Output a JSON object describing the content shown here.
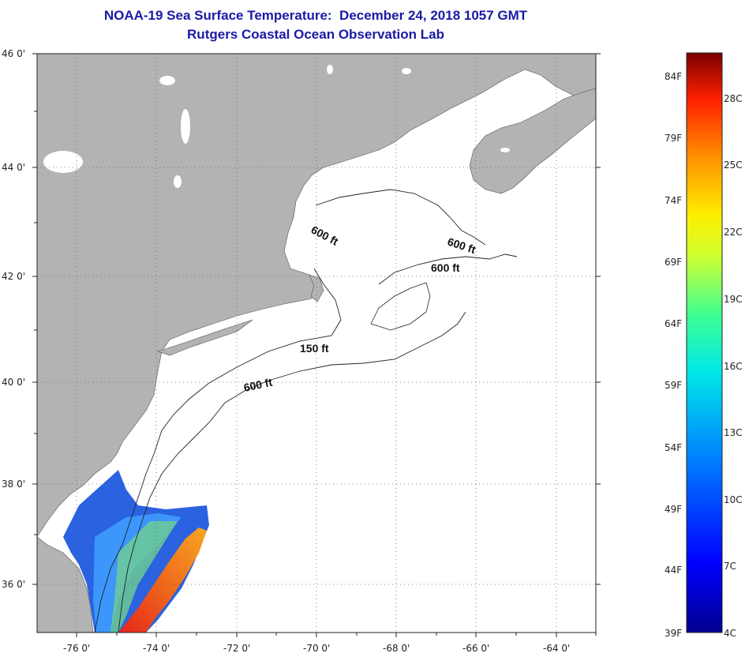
{
  "title": "NOAA-19 Sea Surface Temperature:  December 24, 2018 1057 GMT",
  "subtitle": "Rutgers Coastal Ocean Observation Lab",
  "lat_labels": [
    "46 0'",
    "44 0'",
    "42 0'",
    "40 0'",
    "38 0'",
    "36 0'"
  ],
  "lon_labels": [
    "-76 0'",
    "-74 0'",
    "-72 0'",
    "-70 0'",
    "-68 0'",
    "-66 0'",
    "-64 0'"
  ],
  "contour_labels": [
    "600 ft",
    "600 ft",
    "600 ft",
    "150 ft",
    "600 ft"
  ],
  "colorbar": {
    "fahrenheit": [
      "84F",
      "79F",
      "74F",
      "69F",
      "64F",
      "59F",
      "54F",
      "49F",
      "44F",
      "39F"
    ],
    "celsius": [
      "28C",
      "25C",
      "22C",
      "19C",
      "16C",
      "13C",
      "10C",
      "7C",
      "4C"
    ]
  },
  "colors": {
    "title": "#1a1aa6",
    "land": "#b3b3b3",
    "ocean_no_data": "#ffffff",
    "cold": "#1f4fd6",
    "warm": "#e8311c"
  }
}
